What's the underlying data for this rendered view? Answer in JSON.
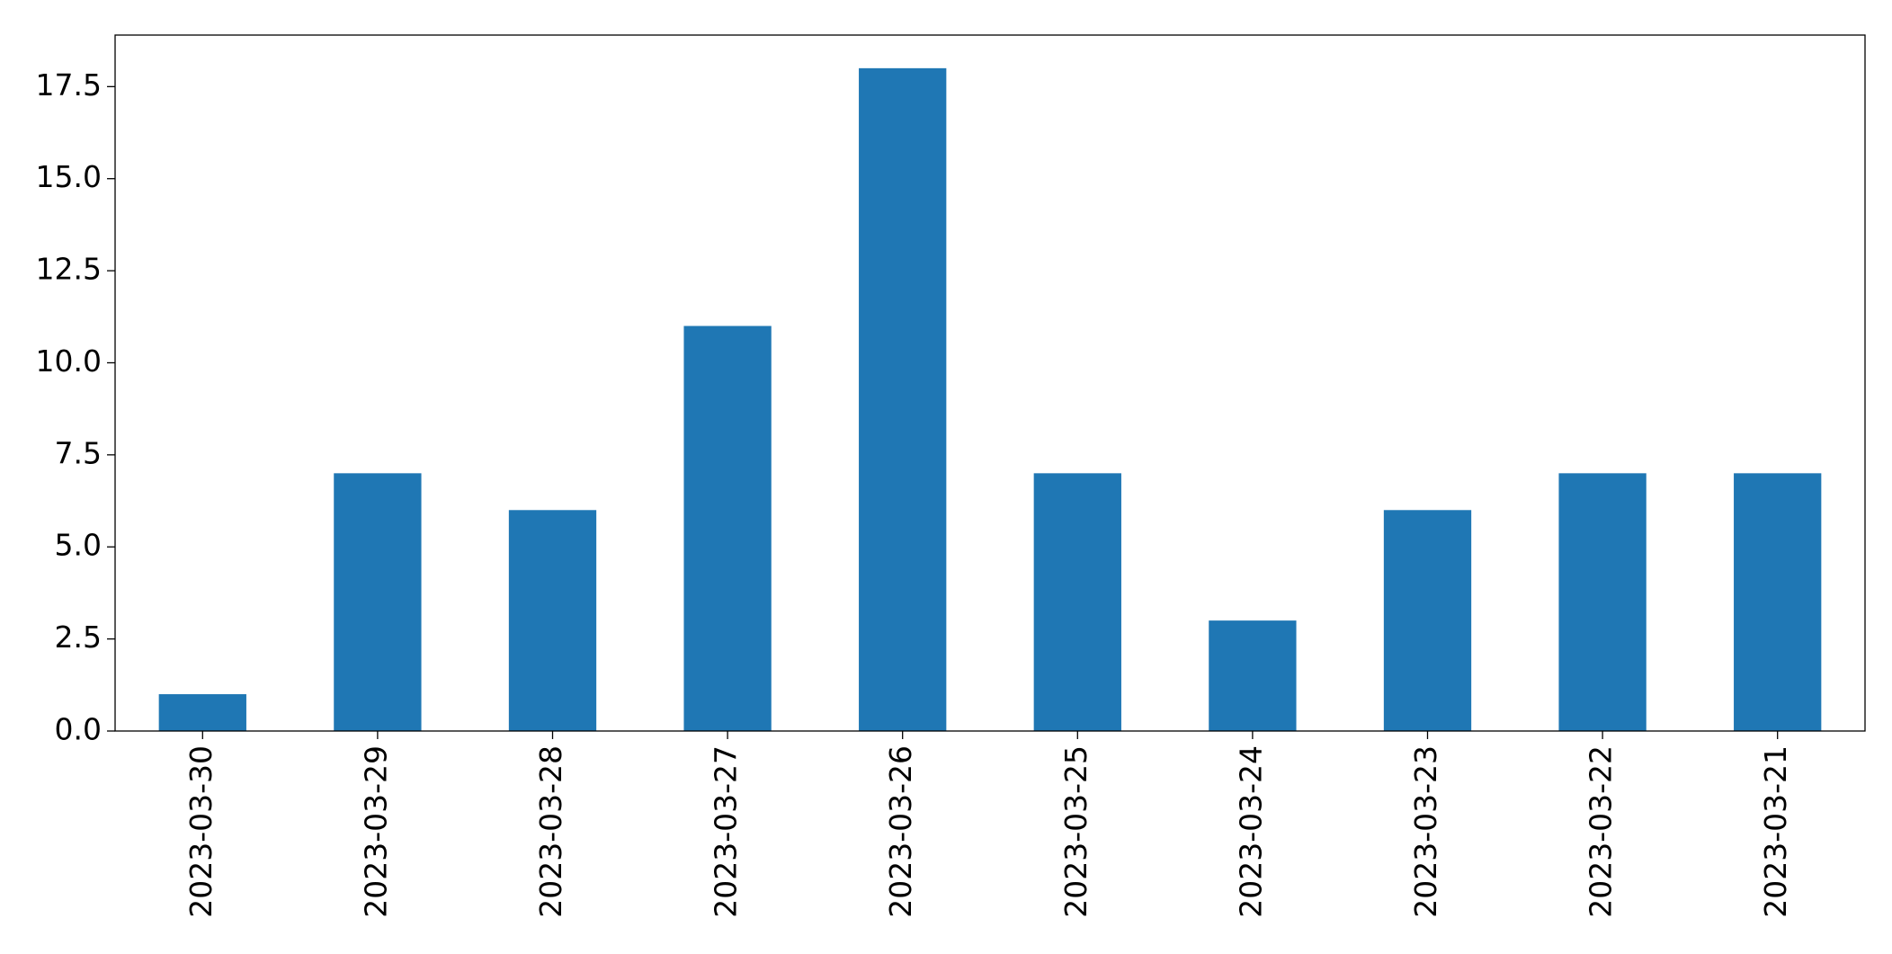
{
  "chart_data": {
    "type": "bar",
    "categories": [
      "2023-03-30",
      "2023-03-29",
      "2023-03-28",
      "2023-03-27",
      "2023-03-26",
      "2023-03-25",
      "2023-03-24",
      "2023-03-23",
      "2023-03-22",
      "2023-03-21"
    ],
    "values": [
      1,
      7,
      6,
      11,
      18,
      7,
      3,
      6,
      7,
      7
    ],
    "color": "#1f77b4",
    "ylim": [
      0,
      18.9
    ],
    "yticks": [
      {
        "value": 0,
        "label": "0.0"
      },
      2.5,
      {
        "value": 5,
        "label": "5.0"
      },
      7.5,
      {
        "value": 10,
        "label": "10.0"
      },
      12.5,
      {
        "value": 15,
        "label": "15.0"
      },
      17.5
    ],
    "grid": false
  }
}
